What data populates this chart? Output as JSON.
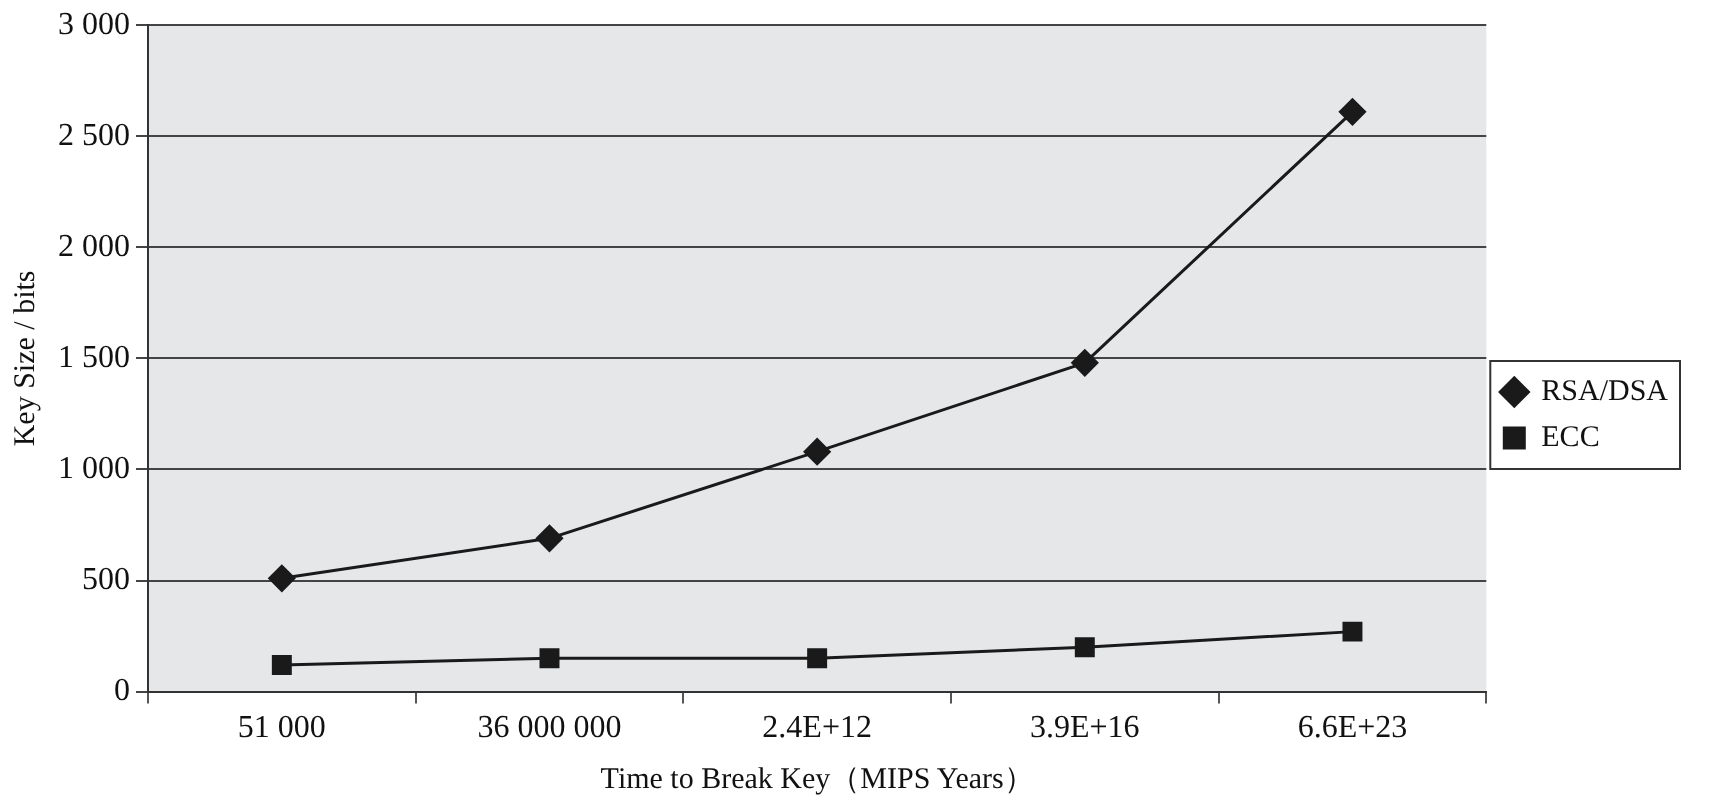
{
  "chart_data": {
    "type": "line",
    "xlabel": "Time to Break Key（MIPS Years）",
    "ylabel": "Key Size / bits",
    "categories": [
      "51 000",
      "36 000 000",
      "2.4E+12",
      "3.9E+16",
      "6.6E+23"
    ],
    "series": [
      {
        "name": "RSA/DSA",
        "color": "#1a1a1a",
        "marker": "diamond",
        "values": [
          510,
          690,
          1080,
          1480,
          2610
        ]
      },
      {
        "name": "ECC",
        "color": "#1a1a1a",
        "marker": "square",
        "values": [
          120,
          150,
          150,
          200,
          270
        ]
      }
    ],
    "ylim": [
      0,
      3000
    ],
    "yticks": [
      0,
      500,
      {
        "value": 1000,
        "label": "1 000"
      },
      {
        "value": 1500,
        "label": "1 500"
      },
      {
        "value": 2000,
        "label": "2 000"
      },
      {
        "value": 2500,
        "label": "2 500"
      },
      {
        "value": 3000,
        "label": "3 000"
      }
    ],
    "grid": "y",
    "legend": "right",
    "line_style": "solid"
  }
}
